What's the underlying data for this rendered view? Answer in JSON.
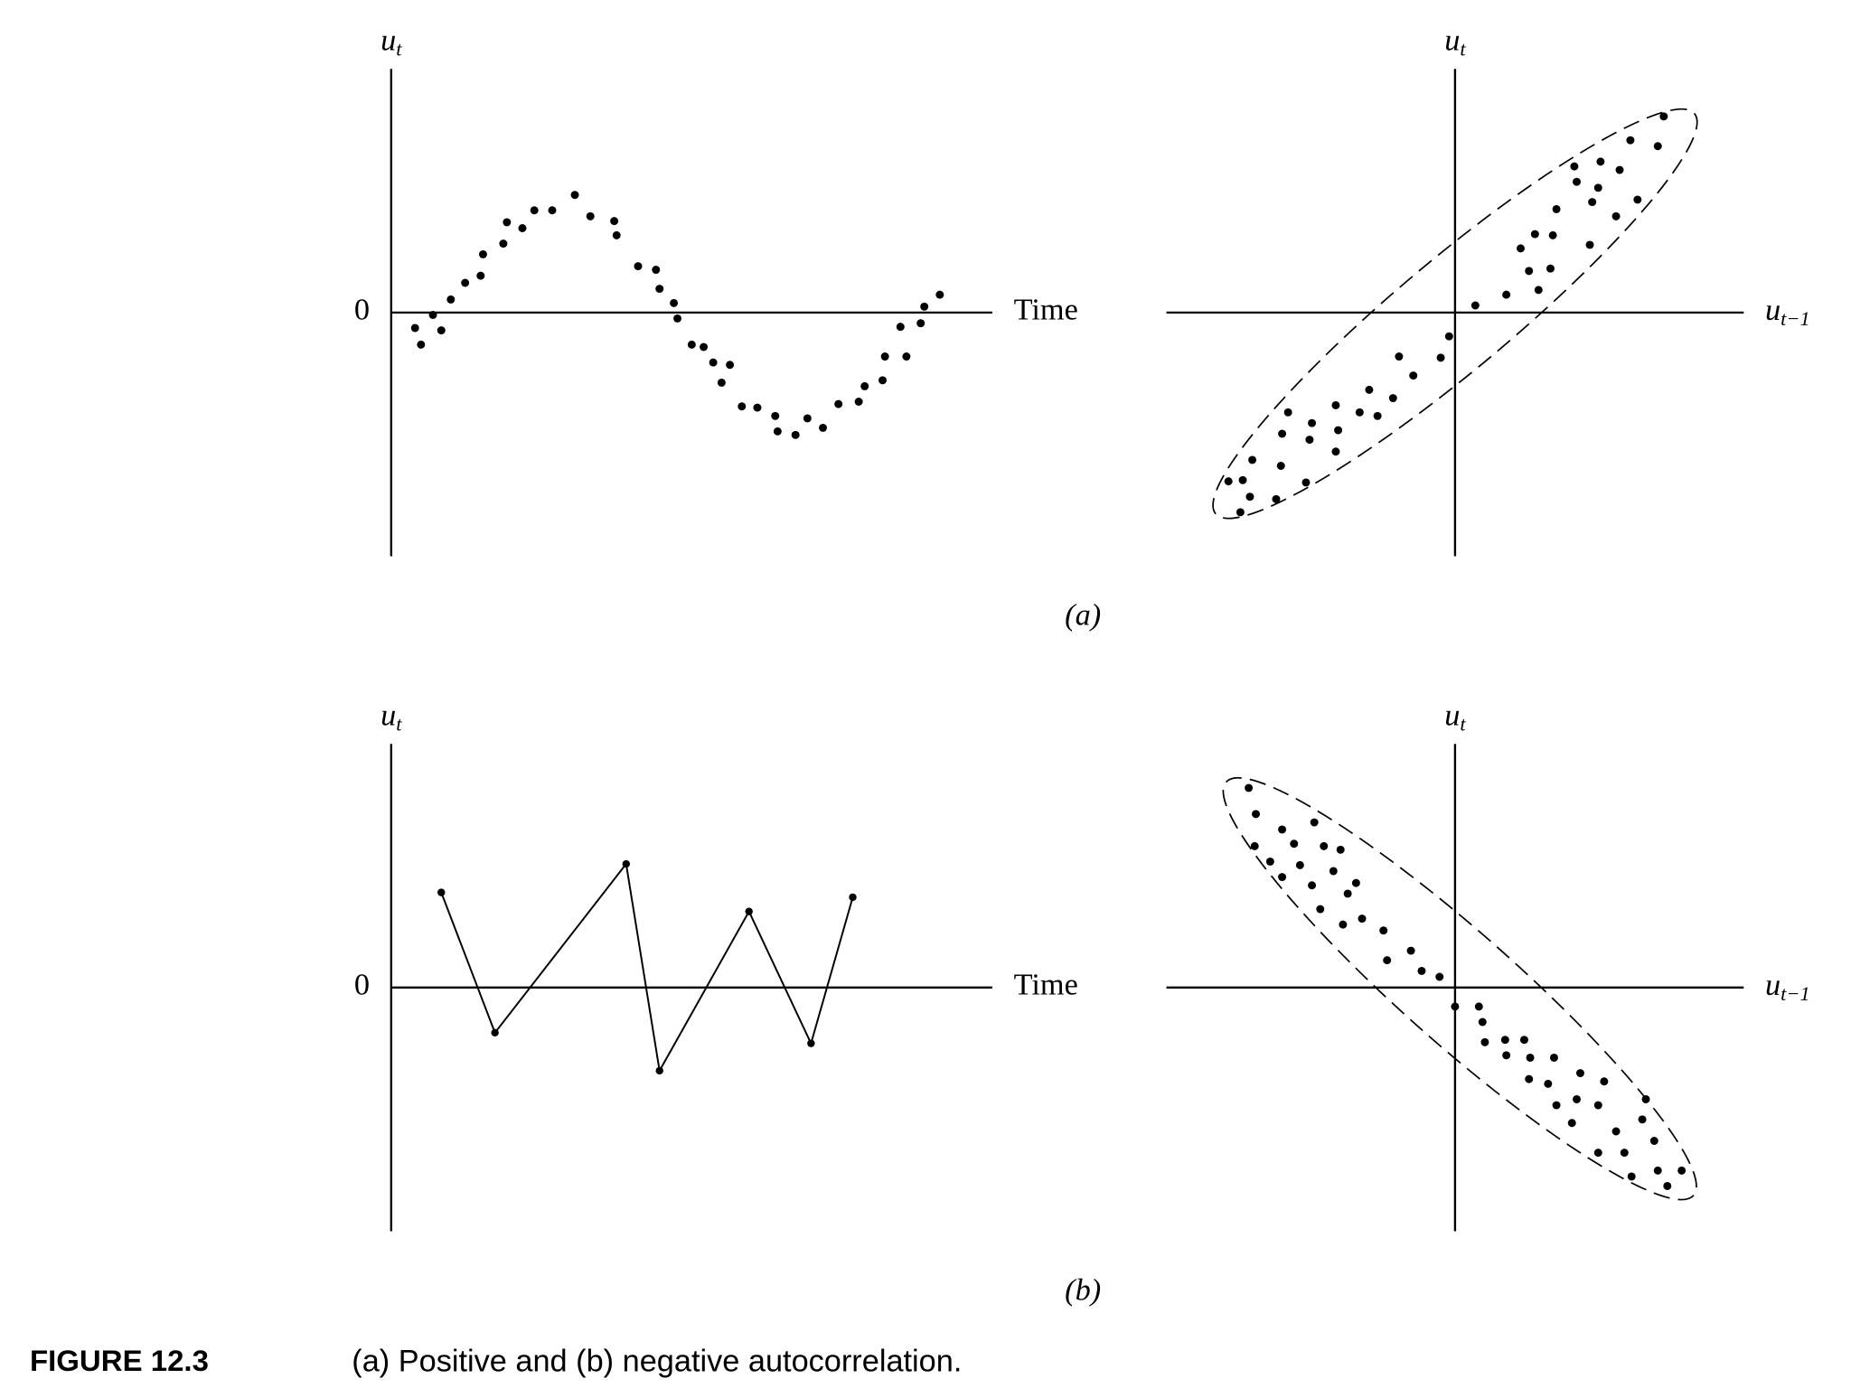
{
  "chart_data": [
    {
      "type": "scatter",
      "y_label": {
        "main": "u",
        "sub": "t"
      },
      "x_label": "Time",
      "xlim": [
        0,
        504
      ],
      "ylim": [
        -205,
        205
      ],
      "yticks": [
        0
      ],
      "x": [
        20,
        25,
        35,
        42,
        50,
        62,
        75,
        77,
        94,
        97,
        110,
        120,
        135,
        154,
        167,
        187,
        189,
        207,
        222,
        225,
        237,
        240,
        252,
        262,
        270,
        277,
        284,
        294,
        307,
        322,
        324,
        339,
        349,
        362,
        375,
        392,
        397,
        412,
        414,
        427,
        432,
        444,
        447,
        460
      ],
      "values": [
        -13,
        -27,
        -2,
        -15,
        11,
        25,
        31,
        49,
        58,
        76,
        71,
        86,
        86,
        99,
        81,
        77,
        65,
        39,
        36,
        20,
        8,
        -5,
        -27,
        -29,
        -42,
        -59,
        -44,
        -79,
        -80,
        -87,
        -100,
        -103,
        -89,
        -97,
        -77,
        -75,
        -62,
        -57,
        -37,
        -12,
        -37,
        -9,
        5,
        15
      ]
    },
    {
      "type": "scatter",
      "y_label": {
        "main": "u",
        "sub": "t"
      },
      "x_label": {
        "main": "u",
        "sub": "t−1"
      },
      "xlim": [
        -242,
        242
      ],
      "ylim": [
        -205,
        205
      ],
      "x": [
        175,
        147,
        170,
        100,
        122,
        138,
        102,
        120,
        153,
        85,
        115,
        135,
        67,
        82,
        113,
        55,
        62,
        80,
        43,
        70,
        17,
        -5,
        -12,
        -47,
        -35,
        -72,
        -52,
        -100,
        -80,
        -140,
        -120,
        -65,
        -145,
        -122,
        -98,
        -170,
        -146,
        -100,
        -178,
        -190,
        -172,
        -125,
        -150,
        -180
      ],
      "values": [
        165,
        145,
        140,
        123,
        127,
        120,
        110,
        105,
        95,
        87,
        93,
        81,
        66,
        65,
        57,
        54,
        35,
        37,
        15,
        19,
        6,
        -20,
        -38,
        -37,
        -53,
        -65,
        -72,
        -78,
        -84,
        -84,
        -93,
        -87,
        -102,
        -107,
        -99,
        -124,
        -129,
        -117,
        -141,
        -142,
        -155,
        -143,
        -157,
        -168
      ]
    },
    {
      "type": "line",
      "y_label": {
        "main": "u",
        "sub": "t"
      },
      "x_label": "Time",
      "xlim": [
        0,
        504
      ],
      "ylim": [
        -205,
        205
      ],
      "yticks": [
        0
      ],
      "x": [
        42,
        87,
        197,
        225,
        300,
        352,
        387
      ],
      "values": [
        80,
        -38,
        104,
        -70,
        64,
        -47,
        76
      ]
    },
    {
      "type": "scatter",
      "y_label": {
        "main": "u",
        "sub": "t"
      },
      "x_label": {
        "main": "u",
        "sub": "t−1"
      },
      "xlim": [
        -242,
        242
      ],
      "ylim": [
        -205,
        205
      ],
      "x": [
        -173,
        -167,
        -145,
        -118,
        -168,
        -135,
        -110,
        -96,
        -155,
        -130,
        -102,
        -83,
        -145,
        -120,
        -90,
        -113,
        -94,
        -78,
        -60,
        -37,
        -57,
        -28,
        -13,
        0,
        20,
        23,
        25,
        42,
        58,
        43,
        63,
        83,
        105,
        62,
        78,
        125,
        102,
        85,
        120,
        160,
        98,
        135,
        157,
        120,
        142,
        167,
        170,
        190,
        148,
        178
      ],
      "values": [
        168,
        146,
        133,
        139,
        119,
        121,
        119,
        116,
        106,
        103,
        98,
        88,
        93,
        86,
        79,
        66,
        53,
        58,
        48,
        31,
        23,
        14,
        9,
        -16,
        -16,
        -29,
        -46,
        -44,
        -44,
        -57,
        -59,
        -59,
        -72,
        -77,
        -81,
        -79,
        -94,
        -99,
        -99,
        -94,
        -114,
        -121,
        -111,
        -139,
        -139,
        -129,
        -154,
        -154,
        -159,
        -167
      ]
    }
  ],
  "panels": [
    "(a)",
    "(b)"
  ],
  "caption": {
    "label": "FIGURE 12.3",
    "text": "(a) Positive and (b) negative autocorrelation."
  }
}
